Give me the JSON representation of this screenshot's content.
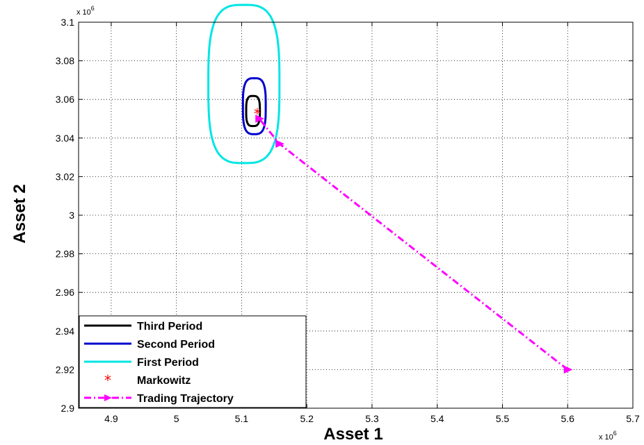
{
  "chart_data": {
    "type": "line",
    "xlabel": "Asset 1",
    "ylabel": "Asset 2",
    "x_exponent": "x 10",
    "x_exponent_power": "6",
    "y_exponent": "x 10",
    "y_exponent_power": "6",
    "xlim": [
      4.85,
      5.7
    ],
    "ylim": [
      2.9,
      3.1
    ],
    "x_ticks": [
      "4.9",
      "5",
      "5.1",
      "5.2",
      "5.3",
      "5.4",
      "5.5",
      "5.6",
      "5.7"
    ],
    "x_tick_values": [
      4.9,
      5.0,
      5.1,
      5.2,
      5.3,
      5.4,
      5.5,
      5.6,
      5.7
    ],
    "y_ticks": [
      "2.9",
      "2.92",
      "2.94",
      "2.96",
      "2.98",
      "3",
      "3.02",
      "3.04",
      "3.06",
      "3.08",
      "3.1"
    ],
    "y_tick_values": [
      2.9,
      2.92,
      2.94,
      2.96,
      2.98,
      3.0,
      3.02,
      3.04,
      3.06,
      3.08,
      3.1
    ],
    "grid": true,
    "grid_style": "dotted",
    "legend_position": "bottom-left",
    "series": [
      {
        "name": "Third Period",
        "kind": "ellipse",
        "color": "#000000",
        "center": [
          5.1175,
          3.054
        ],
        "rx": 0.0105,
        "ry": 0.0078
      },
      {
        "name": "Second Period",
        "kind": "ellipse",
        "color": "#0000cc",
        "center": [
          5.1195,
          3.0565
        ],
        "rx": 0.0175,
        "ry": 0.0145
      },
      {
        "name": "First Period",
        "kind": "ellipse",
        "color": "#00e5e5",
        "center": [
          5.1035,
          3.068
        ],
        "rx": 0.0545,
        "ry": 0.041
      },
      {
        "name": "Markowitz",
        "kind": "marker",
        "color": "#ff0000",
        "x": [
          5.124
        ],
        "y": [
          3.0525
        ]
      },
      {
        "name": "Trading Trajectory",
        "kind": "line",
        "color": "#ff00ff",
        "x": [
          5.6,
          5.158,
          5.127
        ],
        "y": [
          2.92,
          3.037,
          3.05
        ]
      }
    ]
  }
}
